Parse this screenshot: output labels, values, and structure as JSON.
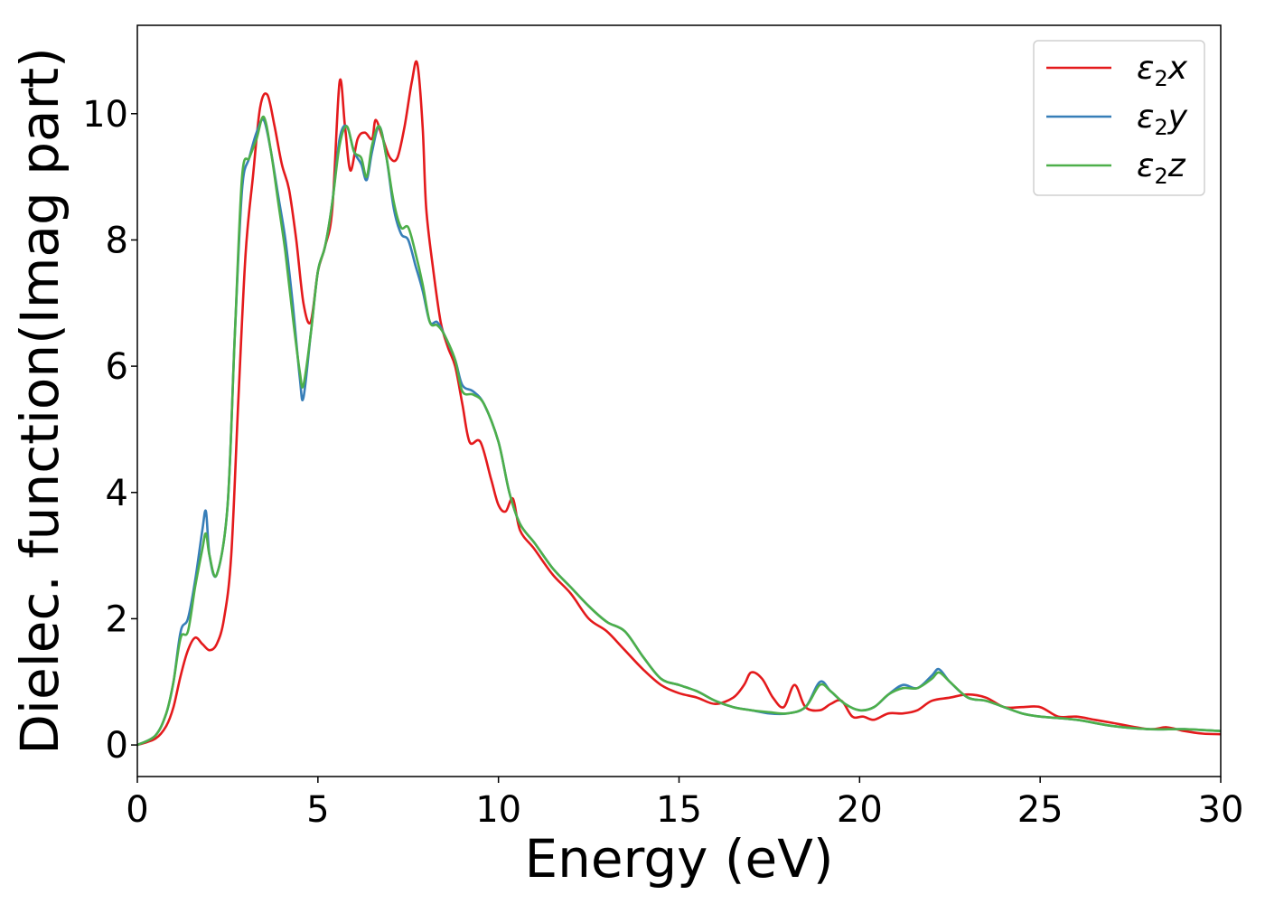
{
  "chart_data": {
    "type": "line",
    "title": "",
    "xlabel": "Energy (eV)",
    "ylabel": "Dielec. function(Imag part)",
    "xlim": [
      0,
      30
    ],
    "ylim": [
      -0.5,
      11.4
    ],
    "xticks": [
      0,
      5,
      10,
      15,
      20,
      25,
      30
    ],
    "yticks": [
      0,
      2,
      4,
      6,
      8,
      10
    ],
    "grid": false,
    "legend_position": "top-right",
    "series": [
      {
        "name": "ε2x",
        "label_base": "ε",
        "label_sub": "2",
        "label_suffix": "x",
        "color": "#e41a1c",
        "points": [
          [
            0,
            0
          ],
          [
            0.5,
            0.1
          ],
          [
            0.8,
            0.3
          ],
          [
            1.0,
            0.6
          ],
          [
            1.2,
            1.1
          ],
          [
            1.4,
            1.5
          ],
          [
            1.6,
            1.7
          ],
          [
            1.8,
            1.6
          ],
          [
            2.0,
            1.5
          ],
          [
            2.2,
            1.6
          ],
          [
            2.4,
            2.0
          ],
          [
            2.6,
            3.0
          ],
          [
            2.8,
            5.5
          ],
          [
            3.0,
            7.8
          ],
          [
            3.2,
            9.0
          ],
          [
            3.4,
            10.1
          ],
          [
            3.6,
            10.3
          ],
          [
            3.8,
            9.8
          ],
          [
            4.0,
            9.2
          ],
          [
            4.2,
            8.8
          ],
          [
            4.4,
            8.0
          ],
          [
            4.6,
            7.0
          ],
          [
            4.8,
            6.7
          ],
          [
            5.0,
            7.5
          ],
          [
            5.2,
            7.9
          ],
          [
            5.4,
            8.5
          ],
          [
            5.6,
            10.5
          ],
          [
            5.75,
            9.8
          ],
          [
            5.9,
            9.1
          ],
          [
            6.1,
            9.6
          ],
          [
            6.3,
            9.7
          ],
          [
            6.5,
            9.6
          ],
          [
            6.6,
            9.9
          ],
          [
            6.8,
            9.6
          ],
          [
            7.0,
            9.3
          ],
          [
            7.2,
            9.3
          ],
          [
            7.4,
            9.8
          ],
          [
            7.6,
            10.5
          ],
          [
            7.75,
            10.8
          ],
          [
            7.9,
            9.8
          ],
          [
            8.0,
            8.5
          ],
          [
            8.2,
            7.5
          ],
          [
            8.4,
            6.7
          ],
          [
            8.6,
            6.3
          ],
          [
            8.8,
            6.0
          ],
          [
            9.0,
            5.4
          ],
          [
            9.2,
            4.8
          ],
          [
            9.5,
            4.8
          ],
          [
            9.8,
            4.2
          ],
          [
            10.0,
            3.8
          ],
          [
            10.2,
            3.7
          ],
          [
            10.4,
            3.9
          ],
          [
            10.6,
            3.4
          ],
          [
            11.0,
            3.1
          ],
          [
            11.5,
            2.7
          ],
          [
            12.0,
            2.4
          ],
          [
            12.5,
            2.0
          ],
          [
            13.0,
            1.8
          ],
          [
            13.5,
            1.5
          ],
          [
            14.0,
            1.2
          ],
          [
            14.5,
            0.95
          ],
          [
            15.0,
            0.82
          ],
          [
            15.5,
            0.75
          ],
          [
            16.0,
            0.65
          ],
          [
            16.5,
            0.75
          ],
          [
            16.8,
            0.95
          ],
          [
            17.0,
            1.15
          ],
          [
            17.3,
            1.05
          ],
          [
            17.6,
            0.75
          ],
          [
            17.9,
            0.6
          ],
          [
            18.2,
            0.95
          ],
          [
            18.5,
            0.6
          ],
          [
            18.9,
            0.55
          ],
          [
            19.2,
            0.65
          ],
          [
            19.5,
            0.7
          ],
          [
            19.8,
            0.45
          ],
          [
            20.1,
            0.45
          ],
          [
            20.4,
            0.4
          ],
          [
            20.8,
            0.5
          ],
          [
            21.2,
            0.5
          ],
          [
            21.6,
            0.55
          ],
          [
            22.0,
            0.7
          ],
          [
            22.5,
            0.75
          ],
          [
            23.0,
            0.8
          ],
          [
            23.5,
            0.75
          ],
          [
            24.0,
            0.6
          ],
          [
            24.5,
            0.6
          ],
          [
            25.0,
            0.6
          ],
          [
            25.5,
            0.45
          ],
          [
            26.0,
            0.45
          ],
          [
            26.5,
            0.4
          ],
          [
            27.0,
            0.35
          ],
          [
            28.0,
            0.25
          ],
          [
            28.5,
            0.28
          ],
          [
            29.0,
            0.22
          ],
          [
            29.5,
            0.18
          ],
          [
            30.0,
            0.17
          ]
        ]
      },
      {
        "name": "ε2y",
        "label_base": "ε",
        "label_sub": "2",
        "label_suffix": "y",
        "color": "#377eb8",
        "points": [
          [
            0,
            0
          ],
          [
            0.5,
            0.15
          ],
          [
            0.8,
            0.5
          ],
          [
            1.0,
            1.0
          ],
          [
            1.2,
            1.8
          ],
          [
            1.4,
            2.0
          ],
          [
            1.6,
            2.6
          ],
          [
            1.8,
            3.4
          ],
          [
            1.9,
            3.7
          ],
          [
            2.0,
            3.0
          ],
          [
            2.2,
            2.7
          ],
          [
            2.5,
            3.8
          ],
          [
            2.7,
            6.5
          ],
          [
            2.9,
            8.8
          ],
          [
            3.1,
            9.3
          ],
          [
            3.3,
            9.7
          ],
          [
            3.5,
            9.9
          ],
          [
            3.7,
            9.4
          ],
          [
            3.9,
            8.7
          ],
          [
            4.1,
            8.0
          ],
          [
            4.3,
            7.0
          ],
          [
            4.5,
            5.8
          ],
          [
            4.6,
            5.5
          ],
          [
            4.8,
            6.5
          ],
          [
            5.0,
            7.5
          ],
          [
            5.2,
            7.9
          ],
          [
            5.4,
            8.6
          ],
          [
            5.6,
            9.6
          ],
          [
            5.8,
            9.8
          ],
          [
            6.0,
            9.4
          ],
          [
            6.2,
            9.2
          ],
          [
            6.35,
            8.95
          ],
          [
            6.5,
            9.4
          ],
          [
            6.7,
            9.8
          ],
          [
            6.9,
            9.3
          ],
          [
            7.1,
            8.5
          ],
          [
            7.3,
            8.1
          ],
          [
            7.5,
            8.0
          ],
          [
            7.7,
            7.6
          ],
          [
            7.9,
            7.2
          ],
          [
            8.1,
            6.7
          ],
          [
            8.3,
            6.7
          ],
          [
            8.5,
            6.5
          ],
          [
            8.8,
            6.1
          ],
          [
            9.0,
            5.7
          ],
          [
            9.3,
            5.6
          ],
          [
            9.6,
            5.4
          ],
          [
            10.0,
            4.8
          ],
          [
            10.3,
            4.0
          ],
          [
            10.6,
            3.5
          ],
          [
            11.0,
            3.2
          ],
          [
            11.5,
            2.8
          ],
          [
            12.0,
            2.5
          ],
          [
            12.5,
            2.2
          ],
          [
            13.0,
            1.95
          ],
          [
            13.5,
            1.8
          ],
          [
            14.0,
            1.4
          ],
          [
            14.5,
            1.05
          ],
          [
            15.0,
            0.95
          ],
          [
            15.5,
            0.85
          ],
          [
            16.0,
            0.7
          ],
          [
            16.5,
            0.6
          ],
          [
            17.0,
            0.55
          ],
          [
            17.5,
            0.5
          ],
          [
            18.0,
            0.5
          ],
          [
            18.5,
            0.6
          ],
          [
            18.9,
            1.0
          ],
          [
            19.2,
            0.85
          ],
          [
            19.6,
            0.65
          ],
          [
            20.0,
            0.55
          ],
          [
            20.4,
            0.6
          ],
          [
            20.8,
            0.8
          ],
          [
            21.2,
            0.95
          ],
          [
            21.6,
            0.9
          ],
          [
            22.0,
            1.1
          ],
          [
            22.2,
            1.2
          ],
          [
            22.5,
            1.0
          ],
          [
            23.0,
            0.75
          ],
          [
            23.5,
            0.7
          ],
          [
            24.0,
            0.6
          ],
          [
            24.5,
            0.5
          ],
          [
            25.0,
            0.45
          ],
          [
            26.0,
            0.4
          ],
          [
            27.0,
            0.3
          ],
          [
            28.0,
            0.25
          ],
          [
            29.0,
            0.25
          ],
          [
            30.0,
            0.22
          ]
        ]
      },
      {
        "name": "ε2z",
        "label_base": "ε",
        "label_sub": "2",
        "label_suffix": "z",
        "color": "#4daf4a",
        "points": [
          [
            0,
            0
          ],
          [
            0.5,
            0.15
          ],
          [
            0.8,
            0.5
          ],
          [
            1.0,
            1.0
          ],
          [
            1.2,
            1.7
          ],
          [
            1.4,
            1.8
          ],
          [
            1.6,
            2.5
          ],
          [
            1.8,
            3.1
          ],
          [
            1.9,
            3.35
          ],
          [
            2.0,
            3.0
          ],
          [
            2.2,
            2.7
          ],
          [
            2.5,
            3.8
          ],
          [
            2.7,
            6.5
          ],
          [
            2.9,
            9.0
          ],
          [
            3.1,
            9.3
          ],
          [
            3.3,
            9.6
          ],
          [
            3.5,
            9.95
          ],
          [
            3.7,
            9.4
          ],
          [
            3.9,
            8.6
          ],
          [
            4.1,
            7.8
          ],
          [
            4.3,
            6.8
          ],
          [
            4.5,
            5.9
          ],
          [
            4.6,
            5.7
          ],
          [
            4.8,
            6.5
          ],
          [
            5.0,
            7.5
          ],
          [
            5.2,
            7.9
          ],
          [
            5.4,
            8.6
          ],
          [
            5.6,
            9.5
          ],
          [
            5.8,
            9.8
          ],
          [
            6.0,
            9.4
          ],
          [
            6.2,
            9.3
          ],
          [
            6.35,
            9.0
          ],
          [
            6.5,
            9.5
          ],
          [
            6.7,
            9.8
          ],
          [
            6.9,
            9.3
          ],
          [
            7.1,
            8.6
          ],
          [
            7.3,
            8.2
          ],
          [
            7.5,
            8.2
          ],
          [
            7.7,
            7.8
          ],
          [
            7.9,
            7.3
          ],
          [
            8.1,
            6.7
          ],
          [
            8.3,
            6.65
          ],
          [
            8.5,
            6.5
          ],
          [
            8.8,
            6.1
          ],
          [
            9.0,
            5.6
          ],
          [
            9.3,
            5.55
          ],
          [
            9.6,
            5.4
          ],
          [
            10.0,
            4.8
          ],
          [
            10.3,
            4.0
          ],
          [
            10.6,
            3.5
          ],
          [
            11.0,
            3.2
          ],
          [
            11.5,
            2.8
          ],
          [
            12.0,
            2.5
          ],
          [
            12.5,
            2.2
          ],
          [
            13.0,
            1.95
          ],
          [
            13.5,
            1.8
          ],
          [
            14.0,
            1.4
          ],
          [
            14.5,
            1.05
          ],
          [
            15.0,
            0.95
          ],
          [
            15.5,
            0.85
          ],
          [
            16.0,
            0.7
          ],
          [
            16.5,
            0.6
          ],
          [
            17.0,
            0.55
          ],
          [
            17.5,
            0.52
          ],
          [
            18.0,
            0.5
          ],
          [
            18.5,
            0.6
          ],
          [
            18.9,
            0.95
          ],
          [
            19.2,
            0.85
          ],
          [
            19.6,
            0.65
          ],
          [
            20.0,
            0.55
          ],
          [
            20.4,
            0.6
          ],
          [
            20.8,
            0.8
          ],
          [
            21.2,
            0.9
          ],
          [
            21.6,
            0.9
          ],
          [
            22.0,
            1.05
          ],
          [
            22.2,
            1.15
          ],
          [
            22.5,
            1.0
          ],
          [
            23.0,
            0.75
          ],
          [
            23.5,
            0.7
          ],
          [
            24.0,
            0.6
          ],
          [
            24.5,
            0.5
          ],
          [
            25.0,
            0.45
          ],
          [
            26.0,
            0.4
          ],
          [
            27.0,
            0.3
          ],
          [
            28.0,
            0.25
          ],
          [
            29.0,
            0.25
          ],
          [
            30.0,
            0.22
          ]
        ]
      }
    ]
  }
}
